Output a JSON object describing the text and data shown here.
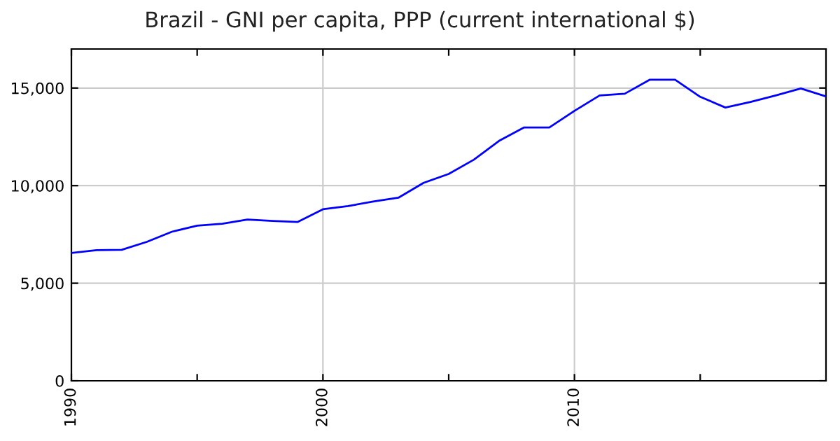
{
  "chart_data": {
    "type": "line",
    "title": "Brazil - GNI per capita, PPP (current international $)",
    "x": [
      1990,
      1991,
      1992,
      1993,
      1994,
      1995,
      1996,
      1997,
      1998,
      1999,
      2000,
      2001,
      2002,
      2003,
      2004,
      2005,
      2006,
      2007,
      2008,
      2009,
      2010,
      2011,
      2012,
      2013,
      2014,
      2015,
      2016,
      2017,
      2018,
      2019,
      2020
    ],
    "series": [
      {
        "color": "#0000ff",
        "values": [
          6550,
          6690,
          6710,
          7120,
          7640,
          7950,
          8050,
          8260,
          8190,
          8140,
          8790,
          8950,
          9190,
          9380,
          10140,
          10600,
          11330,
          12290,
          12980,
          12980,
          13830,
          14620,
          14710,
          15430,
          15430,
          14550,
          14000,
          14290,
          14620,
          14980,
          14570
        ]
      }
    ],
    "xlim": [
      1990,
      2020
    ],
    "ylim": [
      0,
      17000
    ],
    "xticks": [
      {
        "value": 1990,
        "label": "1990"
      },
      {
        "value": 1995,
        "label": null
      },
      {
        "value": 2000,
        "label": "2000"
      },
      {
        "value": 2005,
        "label": null
      },
      {
        "value": 2010,
        "label": "2010"
      },
      {
        "value": 2015,
        "label": null
      }
    ],
    "yticks": [
      {
        "value": 0,
        "label": "0"
      },
      {
        "value": 5000,
        "label": "5,000"
      },
      {
        "value": 10000,
        "label": "10,000"
      },
      {
        "value": 15000,
        "label": "15,000"
      }
    ],
    "grid": true,
    "legend": false,
    "marker": "none",
    "line_style": "solid"
  }
}
